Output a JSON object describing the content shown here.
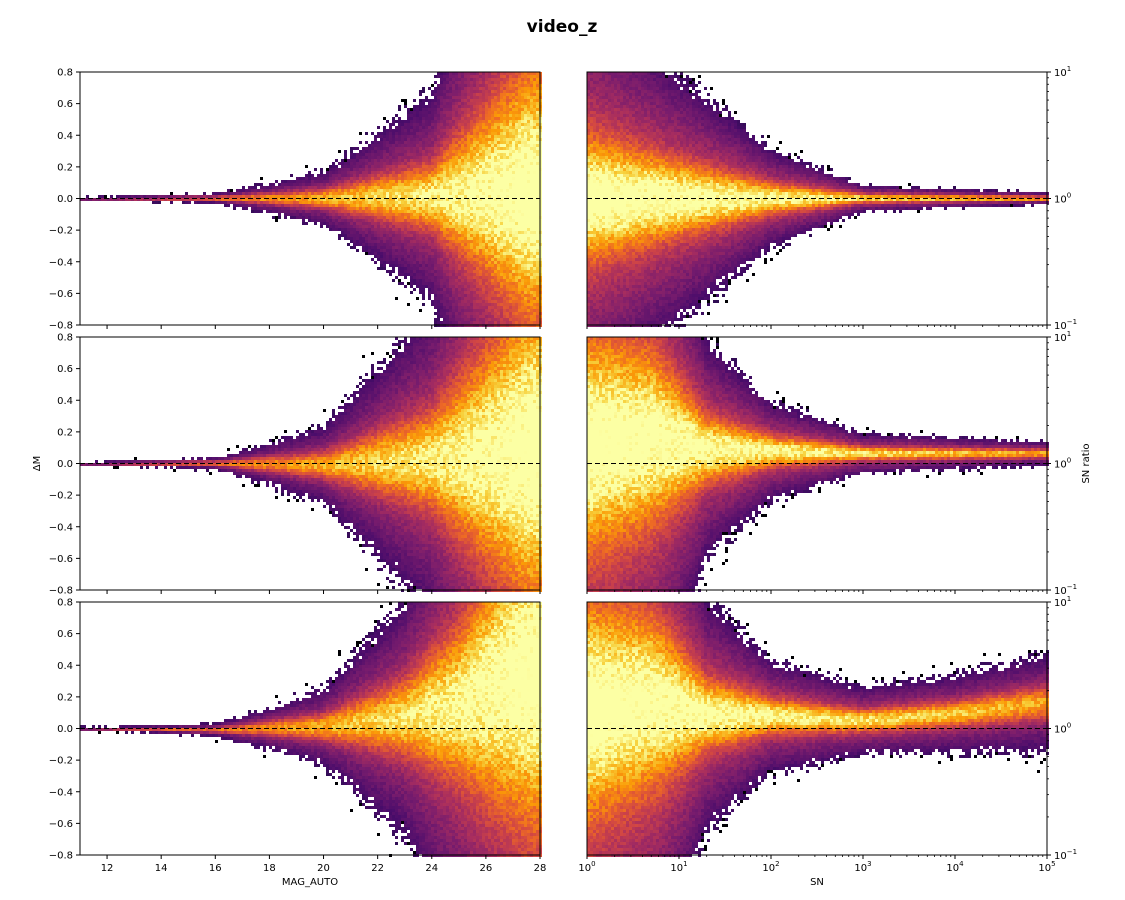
{
  "figure": {
    "title": "video_z"
  },
  "colors": {
    "colormap": "inferno",
    "colormap_stops": [
      "#000004",
      "#1b0c41",
      "#4a0c6b",
      "#781c6d",
      "#a52c60",
      "#cf4446",
      "#ed6925",
      "#fb9b06",
      "#f7d13d",
      "#fcffa4"
    ],
    "reference_line": "#000000"
  },
  "chart_data": [
    {
      "type": "heatmap",
      "row": 0,
      "column": "left",
      "xlabel": "",
      "ylabel": "",
      "xlim": [
        11,
        28
      ],
      "ylim": [
        -0.8,
        0.8
      ],
      "x_ticks": [
        12,
        14,
        16,
        18,
        20,
        22,
        24,
        26,
        28
      ],
      "x_tick_labels": [],
      "y_ticks": [
        -0.8,
        -0.6,
        -0.4,
        -0.2,
        0.0,
        0.2,
        0.4,
        0.6,
        0.8
      ],
      "y_tick_labels": [
        "−0.8",
        "−0.6",
        "−0.4",
        "−0.2",
        "0.0",
        "0.2",
        "0.4",
        "0.6",
        "0.8"
      ],
      "reference_line": {
        "y": 0.0,
        "style": "dashed"
      },
      "density_trend": {
        "x": [
          11.5,
          16,
          20,
          24,
          26,
          27.5
        ],
        "center": [
          0.0,
          0.0,
          0.0,
          0.01,
          0.03,
          0.03
        ],
        "spread": [
          0.004,
          0.008,
          0.035,
          0.12,
          0.3,
          0.45
        ]
      }
    },
    {
      "type": "heatmap",
      "row": 0,
      "column": "right",
      "xlabel": "",
      "ylabel": "",
      "xscale": "log",
      "yscale": "log",
      "xlim": [
        1,
        100000
      ],
      "ylim": [
        0.1,
        10
      ],
      "x_tick_labels": [],
      "y_ticks": [
        0.1,
        1,
        10
      ],
      "y_tick_labels": [
        {
          "base": "10",
          "exp": "−1"
        },
        {
          "base": "10",
          "exp": "0"
        },
        {
          "base": "10",
          "exp": "1"
        }
      ],
      "reference_line": {
        "y": 1,
        "style": "dashed"
      },
      "density_trend": {
        "x": [
          1,
          10,
          100,
          1000,
          100000
        ],
        "center": [
          1.0,
          1.0,
          1.0,
          1.0,
          1.0
        ],
        "spread_dex": [
          0.28,
          0.17,
          0.07,
          0.02,
          0.01
        ]
      }
    },
    {
      "type": "heatmap",
      "row": 1,
      "column": "left",
      "xlabel": "",
      "ylabel": "ΔM",
      "xlim": [
        11,
        28
      ],
      "ylim": [
        -0.8,
        0.8
      ],
      "x_ticks": [
        12,
        14,
        16,
        18,
        20,
        22,
        24,
        26,
        28
      ],
      "x_tick_labels": [],
      "y_ticks": [
        -0.8,
        -0.6,
        -0.4,
        -0.2,
        0.0,
        0.2,
        0.4,
        0.6,
        0.8
      ],
      "y_tick_labels": [
        "−0.8",
        "−0.6",
        "−0.4",
        "−0.2",
        "0.0",
        "0.2",
        "0.4",
        "0.6",
        "0.8"
      ],
      "reference_line": {
        "y": 0.0,
        "style": "dashed"
      },
      "density_trend": {
        "x": [
          11.5,
          16,
          20,
          24,
          26,
          27.5
        ],
        "center": [
          0.0,
          0.0,
          -0.01,
          0.02,
          0.05,
          0.08
        ],
        "spread": [
          0.004,
          0.01,
          0.05,
          0.18,
          0.38,
          0.55
        ]
      }
    },
    {
      "type": "heatmap",
      "row": 1,
      "column": "right",
      "xlabel": "",
      "ylabel": "SN ratio",
      "xscale": "log",
      "yscale": "log",
      "xlim": [
        1,
        100000
      ],
      "ylim": [
        0.1,
        10
      ],
      "x_tick_labels": [],
      "y_ticks": [
        0.1,
        1,
        10
      ],
      "y_tick_labels": [
        {
          "base": "10",
          "exp": "−1"
        },
        {
          "base": "10",
          "exp": "0"
        },
        {
          "base": "10",
          "exp": "1"
        }
      ],
      "reference_line": {
        "y": 1,
        "style": "dashed"
      },
      "density_trend": {
        "x": [
          1,
          5,
          20,
          100,
          1000,
          100000
        ],
        "center": [
          1.4,
          1.6,
          1.3,
          1.25,
          1.2,
          1.2
        ],
        "spread_dex": [
          0.5,
          0.4,
          0.15,
          0.07,
          0.03,
          0.02
        ]
      }
    },
    {
      "type": "heatmap",
      "row": 2,
      "column": "left",
      "xlabel": "MAG_AUTO",
      "ylabel": "",
      "xlim": [
        11,
        28
      ],
      "ylim": [
        -0.8,
        0.8
      ],
      "x_ticks": [
        12,
        14,
        16,
        18,
        20,
        22,
        24,
        26,
        28
      ],
      "x_tick_labels": [
        "12",
        "14",
        "16",
        "18",
        "20",
        "22",
        "24",
        "26",
        "28"
      ],
      "y_ticks": [
        -0.8,
        -0.6,
        -0.4,
        -0.2,
        0.0,
        0.2,
        0.4,
        0.6,
        0.8
      ],
      "y_tick_labels": [
        "−0.8",
        "−0.6",
        "−0.4",
        "−0.2",
        "0.0",
        "0.2",
        "0.4",
        "0.6",
        "0.8"
      ],
      "reference_line": {
        "y": 0.0,
        "style": "dashed"
      },
      "density_trend": {
        "x": [
          11.5,
          16,
          20,
          23,
          25,
          26.5,
          27.5
        ],
        "center": [
          0.0,
          -0.01,
          0.01,
          0.07,
          0.15,
          0.28,
          0.35
        ],
        "spread": [
          0.004,
          0.01,
          0.05,
          0.14,
          0.28,
          0.45,
          0.55
        ]
      }
    },
    {
      "type": "heatmap",
      "row": 2,
      "column": "right",
      "xlabel": "SN",
      "ylabel": "",
      "xscale": "log",
      "yscale": "log",
      "xlim": [
        1,
        100000
      ],
      "ylim": [
        0.1,
        10
      ],
      "x_ticks": [
        1,
        10,
        100,
        1000,
        10000,
        100000
      ],
      "x_tick_labels": [
        {
          "base": "10",
          "exp": "0"
        },
        {
          "base": "10",
          "exp": "1"
        },
        {
          "base": "10",
          "exp": "2"
        },
        {
          "base": "10",
          "exp": "3"
        },
        {
          "base": "10",
          "exp": "4"
        },
        {
          "base": "10",
          "exp": "5"
        }
      ],
      "y_ticks": [
        0.1,
        1,
        10
      ],
      "y_tick_labels": [
        {
          "base": "10",
          "exp": "−1"
        },
        {
          "base": "10",
          "exp": "0"
        },
        {
          "base": "10",
          "exp": "1"
        }
      ],
      "reference_line": {
        "y": 1,
        "style": "dashed"
      },
      "density_trend": {
        "x": [
          1,
          5,
          20,
          100,
          1000,
          10000,
          100000
        ],
        "center": [
          1.4,
          1.6,
          1.3,
          1.25,
          1.15,
          1.3,
          1.6
        ],
        "spread_dex": [
          0.5,
          0.4,
          0.16,
          0.08,
          0.05,
          0.06,
          0.08
        ]
      }
    }
  ]
}
